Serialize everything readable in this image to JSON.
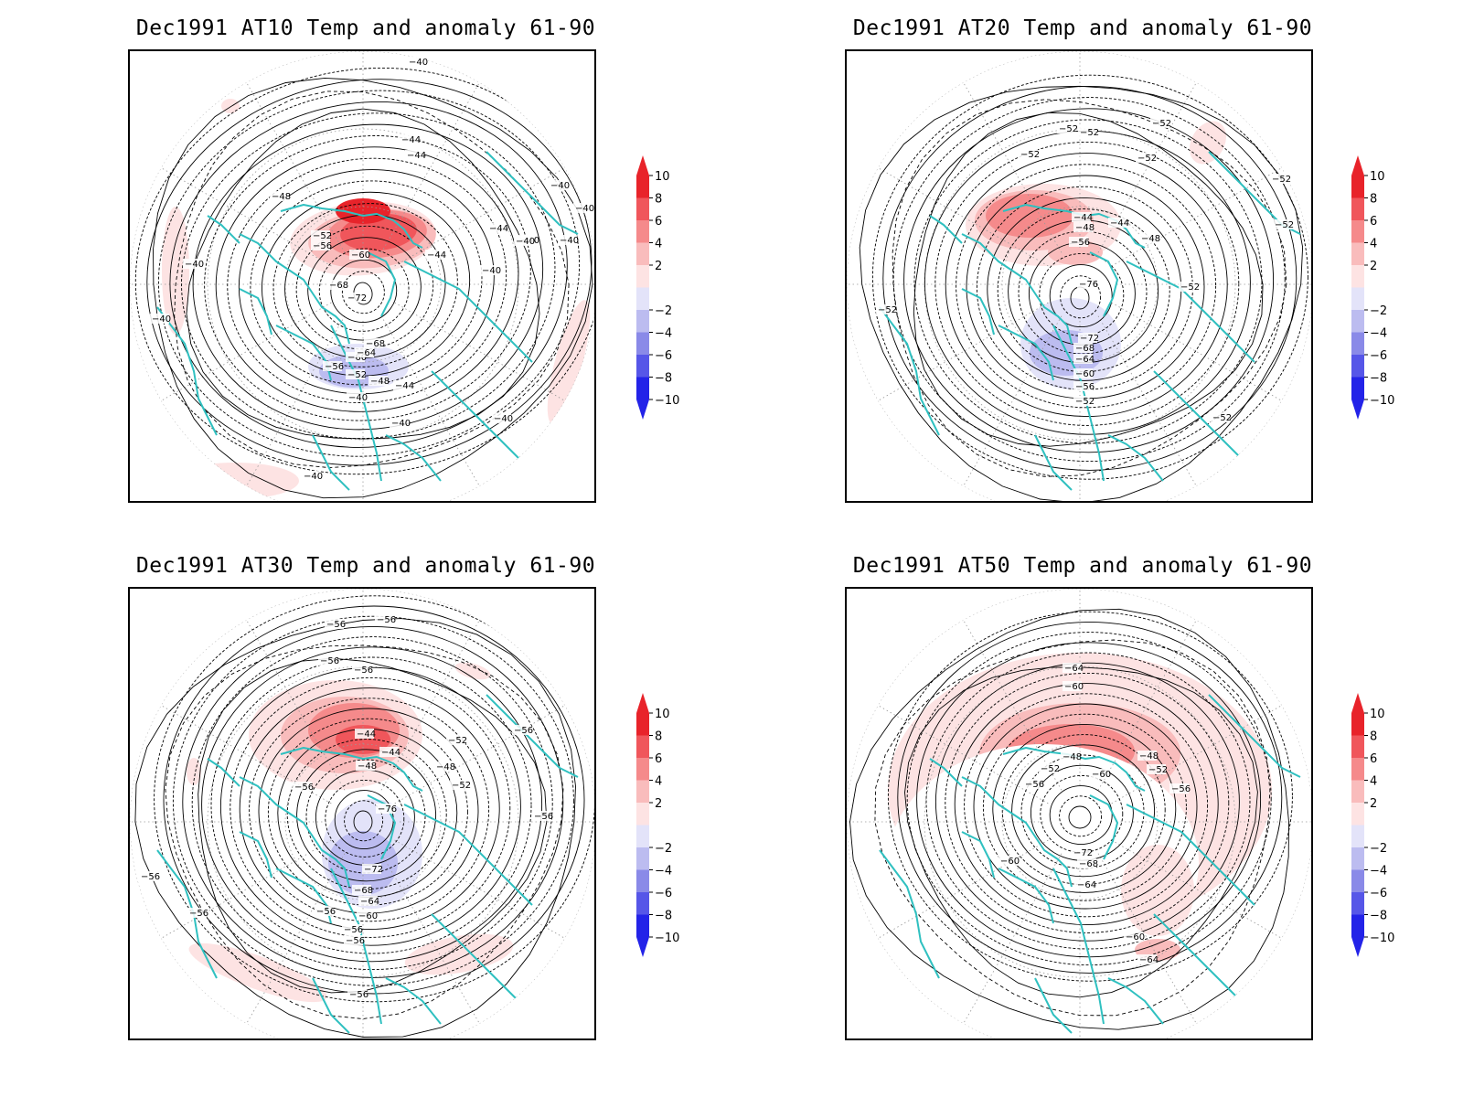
{
  "legend": {
    "levels": [
      "10",
      "8",
      "6",
      "4",
      "2",
      "−2",
      "−4",
      "−6",
      "−8",
      "−10"
    ],
    "colors": [
      "#e8232a",
      "#f0565b",
      "#f58a8b",
      "#f9bcbc",
      "#fde3e3",
      "#e3e3f9",
      "#bcbcf0",
      "#8a8ae8",
      "#5656e8",
      "#2323e8"
    ],
    "tip_colors": {
      "top": "#e8232a",
      "bottom": "#2323e8"
    }
  },
  "colors": {
    "coastline": "#2fc0c0",
    "contour": "#000000",
    "graticule": "#9a9a9a"
  },
  "panels": [
    {
      "title": "Dec1991 AT10 Temp and anomaly 61-90",
      "contour_labels": [
        "−40",
        "−44",
        "−44",
        "−40",
        "−48",
        "−40",
        "−44",
        "−40",
        "−52",
        "−56",
        "−60",
        "−40",
        "−44",
        "−40",
        "−40",
        "−68",
        "−72",
        "−40",
        "−40",
        "−56",
        "−60",
        "−64",
        "−68",
        "−52",
        "−48",
        "−44",
        "−40",
        "−40",
        "−40",
        "−40"
      ]
    },
    {
      "title": "Dec1991 AT20 Temp and anomaly 61-90",
      "contour_labels": [
        "−52",
        "−52",
        "−52",
        "−52",
        "−52",
        "−52",
        "−44",
        "−48",
        "−44",
        "−56",
        "−48",
        "−52",
        "−76",
        "−52",
        "−52",
        "−72",
        "−68",
        "−64",
        "−60",
        "−56",
        "−52",
        "−52"
      ]
    },
    {
      "title": "Dec1991 AT30 Temp and anomaly 61-90",
      "contour_labels": [
        "−56",
        "−56",
        "−56",
        "−56",
        "−44",
        "−44",
        "−48",
        "−52",
        "−48",
        "−56",
        "−52",
        "−56",
        "−56",
        "−76",
        "−56",
        "−72",
        "−68",
        "−64",
        "−60",
        "−56",
        "−56",
        "−56",
        "−56",
        "−56"
      ]
    },
    {
      "title": "Dec1991 AT50 Temp and anomaly 61-90",
      "contour_labels": [
        "−64",
        "−60",
        "−48",
        "−48",
        "−56",
        "−52",
        "−60",
        "−52",
        "−56",
        "−60",
        "−72",
        "−68",
        "−64",
        "−60",
        "−64"
      ]
    }
  ]
}
